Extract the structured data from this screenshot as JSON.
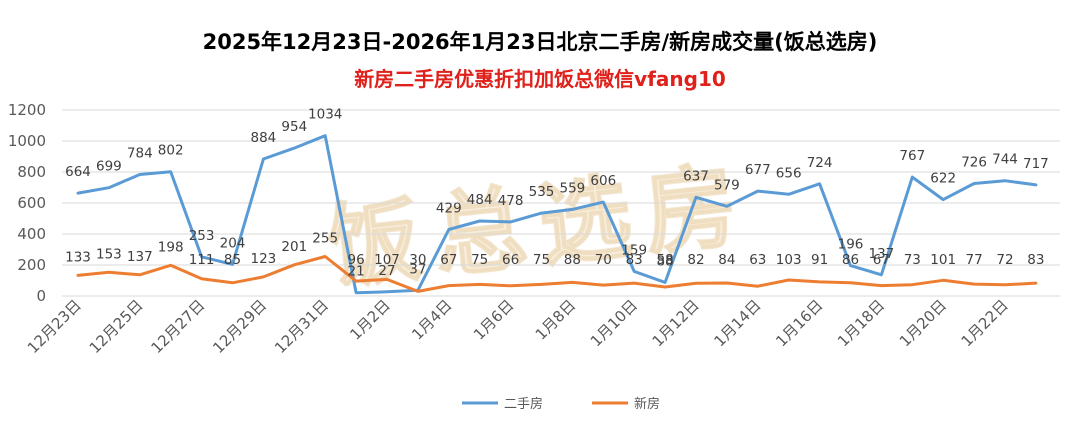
{
  "title": "2025年12月23日-2026年1月23日北京二手房/新房成交量(饭总选房)",
  "subtitle": "新房二手房优惠折扣加饭总微信vfang10",
  "watermark": "饭总选房",
  "chart_data": {
    "type": "line",
    "x": [
      "12月23日",
      "12月24日",
      "12月25日",
      "12月26日",
      "12月27日",
      "12月28日",
      "12月29日",
      "12月30日",
      "12月31日",
      "1月1日",
      "1月2日",
      "1月3日",
      "1月4日",
      "1月5日",
      "1月6日",
      "1月7日",
      "1月8日",
      "1月9日",
      "1月10日",
      "1月11日",
      "1月12日",
      "1月13日",
      "1月14日",
      "1月15日",
      "1月16日",
      "1月17日",
      "1月18日",
      "1月19日",
      "1月20日",
      "1月21日",
      "1月22日",
      "1月23日"
    ],
    "x_tick_labels": [
      "12月23日",
      "12月25日",
      "12月27日",
      "12月29日",
      "12月31日",
      "1月2日",
      "1月4日",
      "1月6日",
      "1月8日",
      "1月10日",
      "1月12日",
      "1月14日",
      "1月16日",
      "1月18日",
      "1月20日",
      "1月22日"
    ],
    "y_ticks": [
      0,
      200,
      400,
      600,
      800,
      1000,
      1200
    ],
    "ylim": [
      0,
      1200
    ],
    "legend_position": "bottom",
    "grid": true,
    "series": [
      {
        "name": "二手房",
        "color": "#5b9bd5",
        "values": [
          664,
          699,
          784,
          802,
          253,
          204,
          884,
          954,
          1034,
          21,
          27,
          37,
          429,
          484,
          478,
          535,
          559,
          606,
          159,
          88,
          637,
          579,
          677,
          656,
          724,
          196,
          137,
          767,
          622,
          726,
          744,
          717
        ]
      },
      {
        "name": "新房",
        "color": "#ed7d31",
        "values": [
          133,
          153,
          137,
          198,
          111,
          85,
          123,
          201,
          255,
          96,
          107,
          30,
          67,
          75,
          66,
          75,
          88,
          70,
          83,
          58,
          82,
          84,
          63,
          103,
          91,
          86,
          67,
          73,
          101,
          77,
          72,
          83
        ]
      }
    ]
  }
}
